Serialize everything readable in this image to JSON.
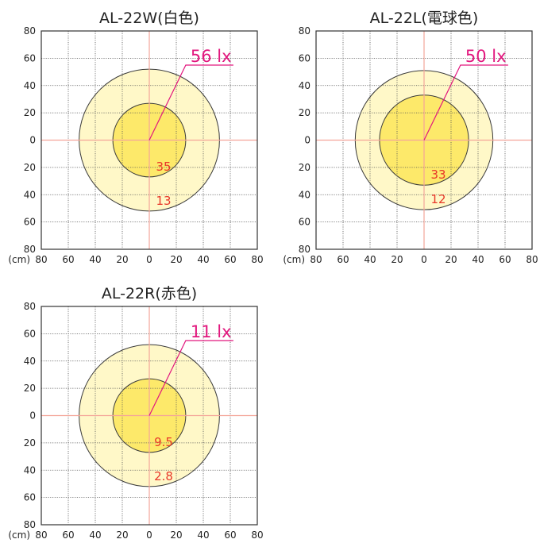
{
  "chart_data": [
    {
      "type": "illuminance-pattern",
      "title": "AL-22W(白色)",
      "unit_label": "(cm)",
      "y_ticks": [
        "80",
        "60",
        "40",
        "20",
        "0",
        "20",
        "40",
        "60",
        "80"
      ],
      "x_ticks": [
        "80",
        "60",
        "40",
        "20",
        "0",
        "20",
        "40",
        "60",
        "80"
      ],
      "axis_range_cm": [
        -80,
        80
      ],
      "center_lux_label": "56 lx",
      "rings": [
        {
          "radius_cm": 52,
          "lux": "13",
          "fill": "#fff8c8"
        },
        {
          "radius_cm": 27,
          "lux": "35",
          "fill": "#fde96a"
        }
      ]
    },
    {
      "type": "illuminance-pattern",
      "title": "AL-22L(電球色)",
      "unit_label": "(cm)",
      "y_ticks": [
        "80",
        "60",
        "40",
        "20",
        "0",
        "20",
        "40",
        "60",
        "80"
      ],
      "x_ticks": [
        "80",
        "60",
        "40",
        "20",
        "0",
        "20",
        "40",
        "60",
        "80"
      ],
      "axis_range_cm": [
        -80,
        80
      ],
      "center_lux_label": "50 lx",
      "rings": [
        {
          "radius_cm": 51,
          "lux": "12",
          "fill": "#fff8c8"
        },
        {
          "radius_cm": 33,
          "lux": "33",
          "fill": "#fde96a"
        }
      ]
    },
    {
      "type": "illuminance-pattern",
      "title": "AL-22R(赤色)",
      "unit_label": "(cm)",
      "y_ticks": [
        "80",
        "60",
        "40",
        "20",
        "0",
        "20",
        "40",
        "60",
        "80"
      ],
      "x_ticks": [
        "80",
        "60",
        "40",
        "20",
        "0",
        "20",
        "40",
        "60",
        "80"
      ],
      "axis_range_cm": [
        -80,
        80
      ],
      "center_lux_label": "11 lx",
      "rings": [
        {
          "radius_cm": 52,
          "lux": "2.8",
          "fill": "#fff8c8"
        },
        {
          "radius_cm": 27,
          "lux": "9.5",
          "fill": "#fde96a"
        }
      ]
    }
  ],
  "colors": {
    "frame": "#333333",
    "grid": "#555555",
    "axis_cross": "#f4a59a",
    "ring_stroke": "#3a3a3a",
    "lux_value_text": "#e8382a",
    "center_label": "#e2177e"
  }
}
